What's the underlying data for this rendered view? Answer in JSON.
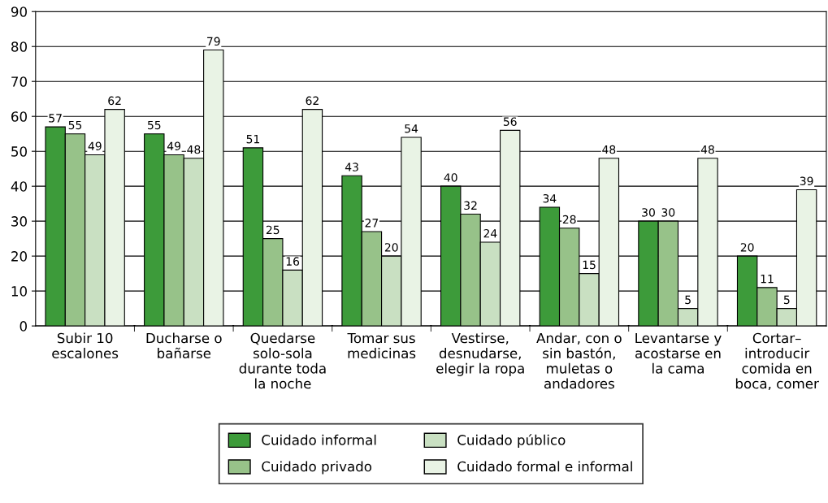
{
  "chart_data": {
    "type": "bar",
    "categories": [
      "Subir 10\nescalones",
      "Ducharse o\nbañarse",
      "Quedarse\nsolo-sola\ndurante toda\nla noche",
      "Tomar sus\nmedicinas",
      "Vestirse,\ndesnudarse,\nelegir la ropa",
      "Andar, con o\nsin bastón,\nmuletas o\nandadores",
      "Levantarse y\nacostarse en\nla cama",
      "Cortar–\nintroducir\ncomida en\nboca, comer"
    ],
    "series": [
      {
        "name": "Cuidado informal",
        "color": "#3d9b3a",
        "values": [
          57,
          55,
          51,
          43,
          40,
          34,
          30,
          20
        ]
      },
      {
        "name": "Cuidado privado",
        "color": "#97c289",
        "values": [
          55,
          49,
          25,
          27,
          32,
          28,
          30,
          11
        ]
      },
      {
        "name": "Cuidado público",
        "color": "#c9e0c2",
        "values": [
          49,
          48,
          16,
          20,
          24,
          15,
          5,
          5
        ]
      },
      {
        "name": "Cuidado formal e informal",
        "color": "#e9f3e5",
        "values": [
          62,
          79,
          62,
          54,
          56,
          48,
          48,
          39
        ]
      }
    ],
    "ylim": [
      0,
      90
    ],
    "yticks": [
      0,
      10,
      20,
      30,
      40,
      50,
      60,
      70,
      80,
      90
    ],
    "grid": "y",
    "legend": "bottom",
    "data_labels": true
  }
}
